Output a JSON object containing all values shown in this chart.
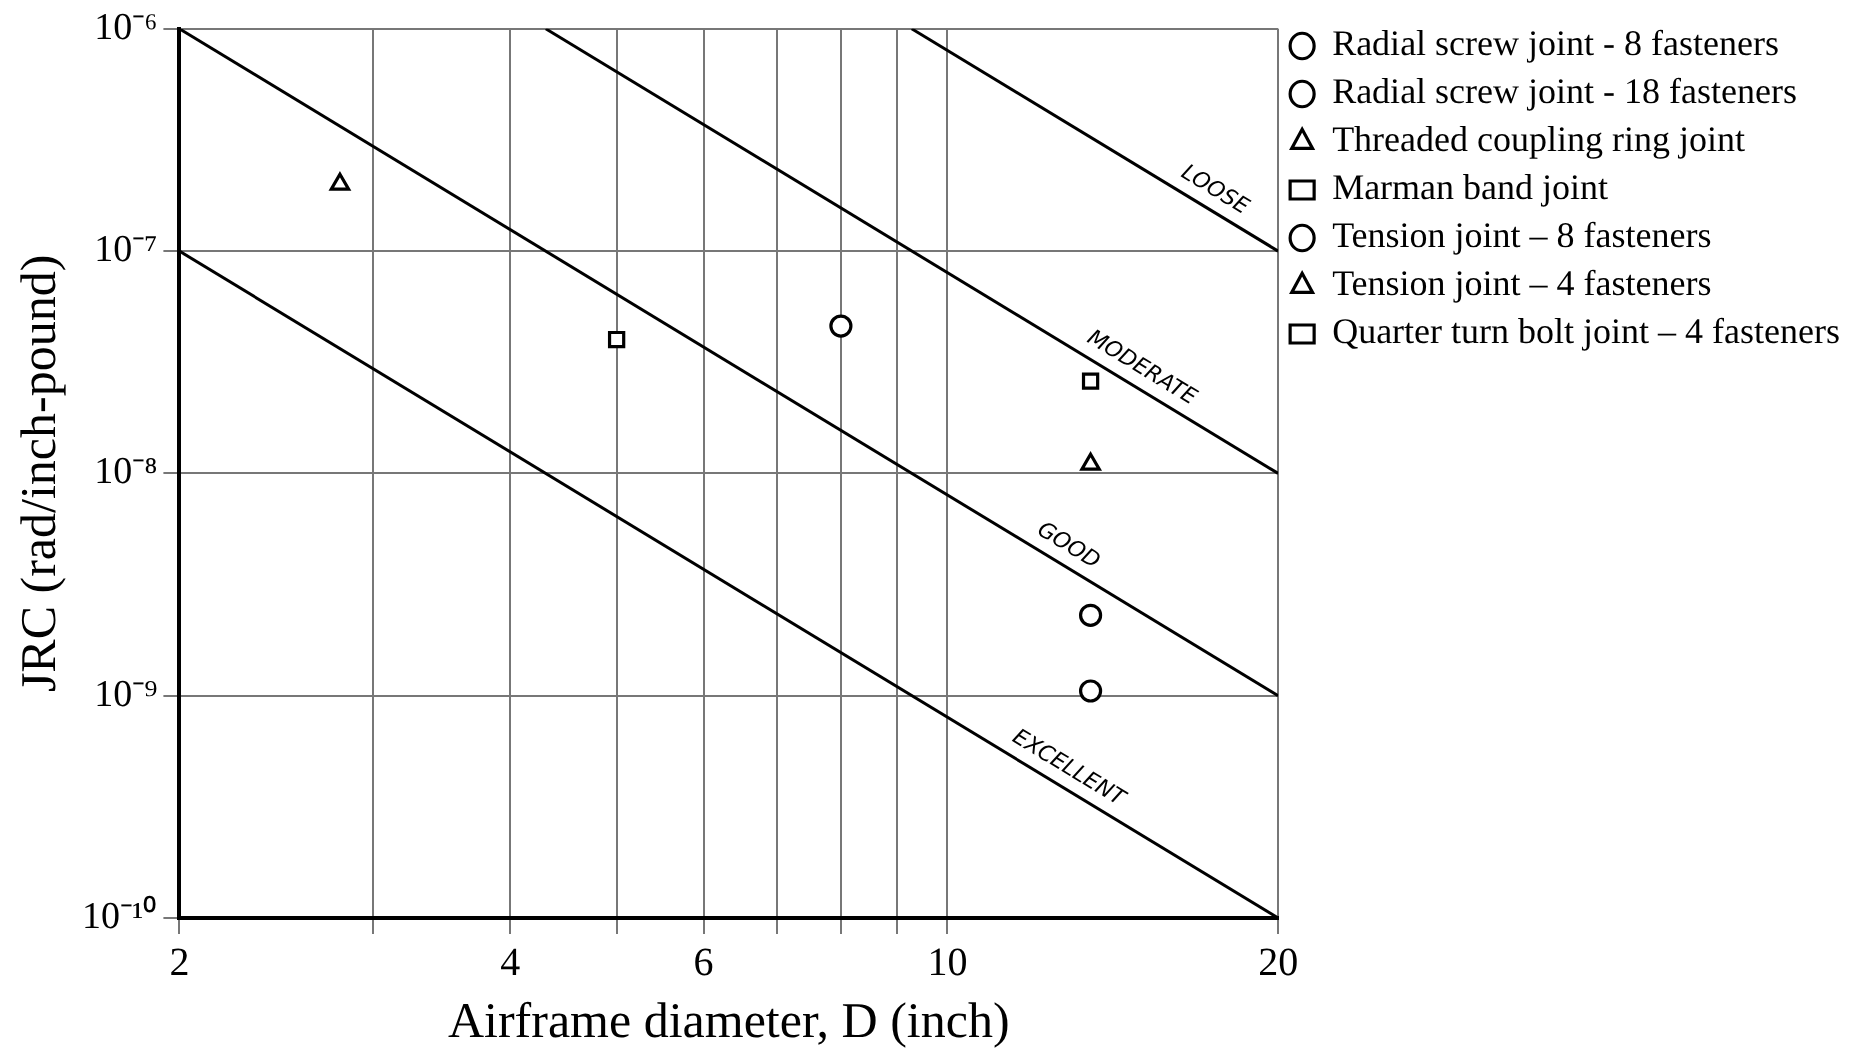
{
  "chart_data": {
    "type": "scatter",
    "xlabel": "Airframe diameter, D (inch)",
    "ylabel": "JRC (rad/inch-pound)",
    "log": "xy",
    "grid": true,
    "legend": "right",
    "xlim": [
      2,
      20
    ],
    "xticks": [
      2,
      {
        "value": 3,
        "label": null
      },
      4,
      {
        "value": 5,
        "label": null
      },
      6,
      {
        "value": 7,
        "label": null
      },
      {
        "value": 8,
        "label": null
      },
      {
        "value": 9,
        "label": null
      },
      10,
      20
    ],
    "ylim": [
      1e-10,
      1e-06
    ],
    "yticks": [
      {
        "value": 1e-10,
        "label": "10⁻¹⁰"
      },
      {
        "value": 1e-09,
        "label": "10⁻⁹"
      },
      {
        "value": 1e-08,
        "label": "10⁻⁸"
      },
      {
        "value": 1e-07,
        "label": "10⁻⁷"
      },
      {
        "value": 1e-06,
        "label": "10⁻⁶"
      }
    ],
    "series": [
      {
        "name": "Radial screw joint - 8 fasteners",
        "color": "#000000",
        "marker": "circle",
        "x": [
          8.0
        ],
        "values": [
          4.6e-08
        ]
      },
      {
        "name": "Radial screw joint - 18 fasteners",
        "color": "#000000",
        "marker": "circle",
        "x": [
          13.5
        ],
        "values": [
          2.3e-09
        ]
      },
      {
        "name": "Threaded coupling ring joint",
        "color": "#000000",
        "marker": "triangle",
        "x": [
          2.8
        ],
        "values": [
          2e-07
        ]
      },
      {
        "name": "Marman band joint",
        "color": "#000000",
        "marker": "square",
        "x": [
          5.0
        ],
        "values": [
          4e-08
        ]
      },
      {
        "name": "Tension joint – 8 fasteners",
        "color": "#000000",
        "marker": "circle",
        "x": [
          13.5
        ],
        "values": [
          1.05e-09
        ]
      },
      {
        "name": "Tension joint – 4 fasteners",
        "color": "#000000",
        "marker": "triangle",
        "x": [
          13.5
        ],
        "values": [
          1.1e-08
        ]
      },
      {
        "name": "Quarter turn bolt joint – 4 fasteners",
        "color": "#000000",
        "marker": "square",
        "x": [
          13.5
        ],
        "values": [
          2.6e-08
        ]
      },
      {
        "name": "LOOSE",
        "type": "line",
        "color": "#000000",
        "marker": "none",
        "x": [
          9.28,
          20
        ],
        "values": [
          1e-06,
          1e-07
        ]
      },
      {
        "name": "MODERATE",
        "type": "line",
        "color": "#000000",
        "marker": "none",
        "x": [
          4.31,
          20
        ],
        "values": [
          1e-06,
          1e-08
        ]
      },
      {
        "name": "GOOD",
        "type": "line",
        "color": "#000000",
        "marker": "none",
        "x": [
          2,
          20
        ],
        "values": [
          1e-06,
          1e-09
        ]
      },
      {
        "name": "EXCELLENT",
        "type": "line",
        "color": "#000000",
        "marker": "none",
        "x": [
          2,
          20
        ],
        "values": [
          1e-07,
          1e-10
        ]
      }
    ]
  }
}
